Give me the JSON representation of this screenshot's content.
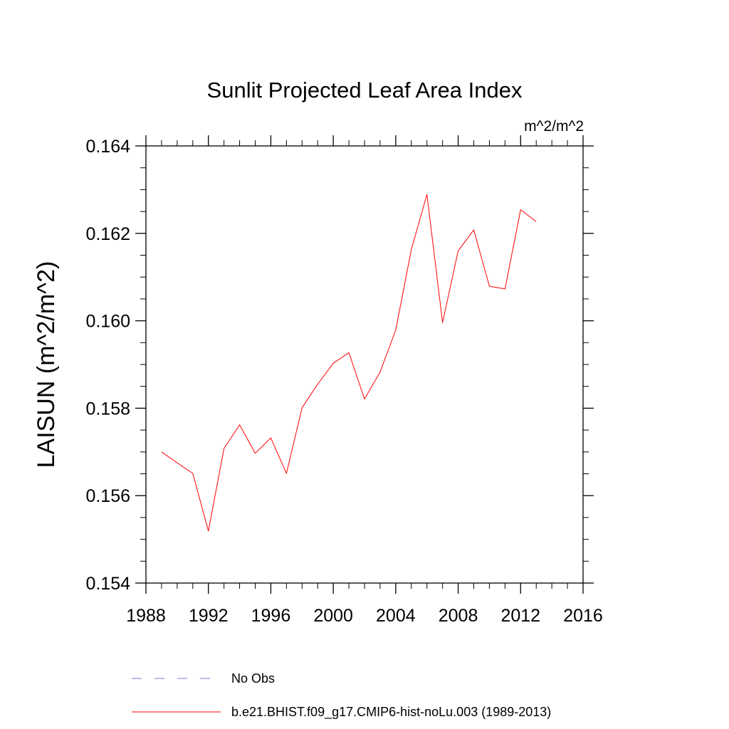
{
  "chart_data": {
    "type": "line",
    "title": "Sunlit Projected Leaf Area Index",
    "units_label": "m^2/m^2",
    "ylabel": "LAISUN  (m^2/m^2)",
    "xlabel": "",
    "xlim": [
      1988,
      2016
    ],
    "ylim": [
      0.154,
      0.164
    ],
    "x_ticks": [
      1988,
      1992,
      1996,
      2000,
      2004,
      2008,
      2012,
      2016
    ],
    "x_tick_labels": [
      "1988",
      "1992",
      "1996",
      "2000",
      "2004",
      "2008",
      "2012",
      "2016"
    ],
    "y_ticks": [
      0.154,
      0.156,
      0.158,
      0.16,
      0.162,
      0.164
    ],
    "y_tick_labels": [
      "0.154",
      "0.156",
      "0.158",
      "0.160",
      "0.162",
      "0.164"
    ],
    "x_minor_step": 1,
    "y_minor_step": 0.0005,
    "grid": false,
    "legend_position": "bottom",
    "legend": [
      {
        "name": "No Obs",
        "color": "#7b7bd6",
        "style": "dashed"
      },
      {
        "name": "b.e21.BHIST.f09_g17.CMIP6-hist-noLu.003 (1989-2013)",
        "color": "#ff0000",
        "style": "solid"
      }
    ],
    "series": [
      {
        "name": "b.e21.BHIST.f09_g17.CMIP6-hist-noLu.003 (1989-2013)",
        "color": "#ff0000",
        "x": [
          1989,
          1990,
          1991,
          1992,
          1993,
          1994,
          1995,
          1996,
          1997,
          1998,
          1999,
          2000,
          2001,
          2002,
          2003,
          2004,
          2005,
          2006,
          2007,
          2008,
          2009,
          2010,
          2011,
          2012,
          2013
        ],
        "values": [
          0.157,
          0.15675,
          0.15651,
          0.15519,
          0.15708,
          0.15762,
          0.15697,
          0.15732,
          0.15651,
          0.15801,
          0.15855,
          0.15903,
          0.15927,
          0.15821,
          0.15883,
          0.15979,
          0.16163,
          0.16289,
          0.15996,
          0.1616,
          0.16208,
          0.16079,
          0.16073,
          0.16254,
          0.16227
        ]
      }
    ]
  }
}
